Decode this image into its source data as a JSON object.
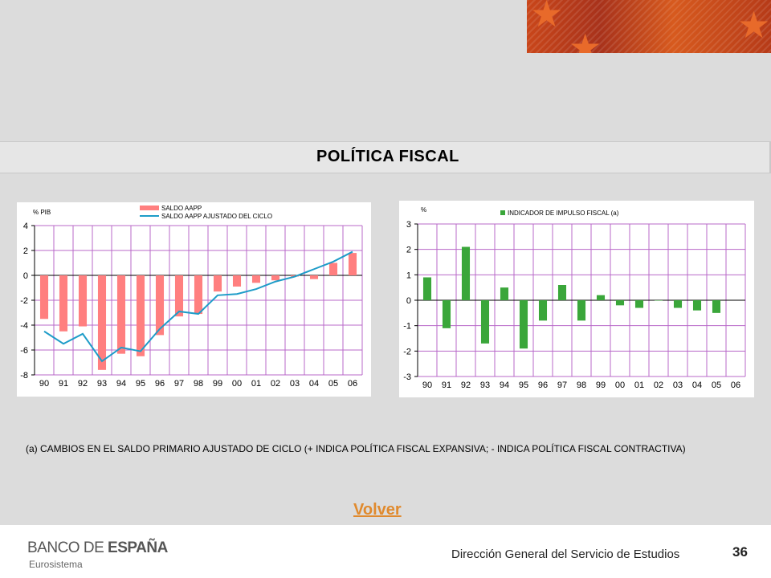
{
  "header": {
    "title": "POLÍTICA FISCAL"
  },
  "chart_data": [
    {
      "type": "bar+line",
      "ylabel": "% PIB",
      "ylim": [
        -8,
        4
      ],
      "yticks": [
        -8,
        -6,
        -4,
        -2,
        0,
        2,
        4
      ],
      "categories": [
        "90",
        "91",
        "92",
        "93",
        "94",
        "95",
        "96",
        "97",
        "98",
        "99",
        "00",
        "01",
        "02",
        "03",
        "04",
        "05",
        "06"
      ],
      "series": [
        {
          "name": "SALDO AAPP",
          "kind": "bar",
          "color": "#ff7f7f",
          "values": [
            -3.5,
            -4.5,
            -4.1,
            -7.6,
            -6.3,
            -6.5,
            -4.8,
            -3.3,
            -3.1,
            -1.3,
            -0.9,
            -0.6,
            -0.4,
            -0.1,
            -0.3,
            1.0,
            1.8
          ]
        },
        {
          "name": "SALDO AAPP AJUSTADO DEL CICLO",
          "kind": "line",
          "color": "#1e9cc8",
          "values": [
            -4.5,
            -5.5,
            -4.7,
            -6.9,
            -5.8,
            -6.1,
            -4.3,
            -2.9,
            -3.1,
            -1.6,
            -1.5,
            -1.1,
            -0.5,
            -0.1,
            0.5,
            1.1,
            1.9
          ]
        }
      ],
      "legend": "top"
    },
    {
      "type": "bar",
      "ylabel": "%",
      "ylim": [
        -3,
        3
      ],
      "yticks": [
        -3,
        -2,
        -1,
        0,
        1,
        2,
        3
      ],
      "categories": [
        "90",
        "91",
        "92",
        "93",
        "94",
        "95",
        "96",
        "97",
        "98",
        "99",
        "00",
        "01",
        "02",
        "03",
        "04",
        "05",
        "06"
      ],
      "series": [
        {
          "name": "INDICADOR DE IMPULSO FISCAL (a)",
          "kind": "bar",
          "color": "#3aa63a",
          "values": [
            0.9,
            -1.1,
            2.1,
            -1.7,
            0.5,
            -1.9,
            -0.8,
            0.6,
            -0.8,
            0.2,
            -0.2,
            -0.3,
            0.0,
            -0.3,
            -0.4,
            -0.5,
            null
          ]
        }
      ],
      "legend": "top"
    }
  ],
  "note": "(a) CAMBIOS EN EL SALDO PRIMARIO AJUSTADO DE CICLO (+ INDICA POLÍTICA FISCAL EXPANSIVA; - INDICA POLÍTICA FISCAL CONTRACTIVA)",
  "link": {
    "label": "Volver"
  },
  "footer": {
    "logo_part1": "BANCO DE ",
    "logo_part2": "ESPAÑA",
    "logo_sub": "Eurosistema",
    "department": "Dirección General del Servicio de Estudios",
    "page": "36"
  },
  "colors": {
    "background": "#dcdcdc",
    "grid": "#b868c8",
    "link": "#e08a2e"
  }
}
